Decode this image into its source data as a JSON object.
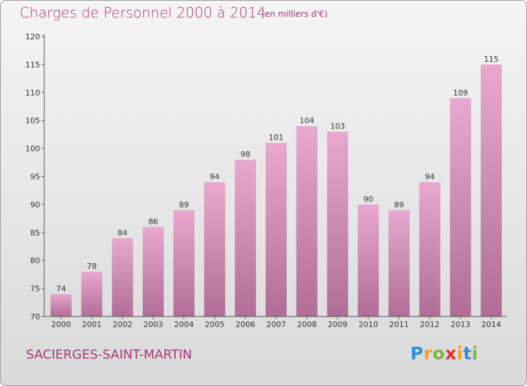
{
  "title": "Charges de Personnel 2000 à 2014",
  "subtitle": "(en milliers d'€)",
  "city": "SACIERGES-SAINT-MARTIN",
  "logo": {
    "text": "Proxiti",
    "letters": [
      {
        "ch": "P",
        "color": "#2e8fd6"
      },
      {
        "ch": "r",
        "color": "#f0a020"
      },
      {
        "ch": "o",
        "color": "#79b83a"
      },
      {
        "ch": "x",
        "color": "#e0302b"
      },
      {
        "ch": "i",
        "color": "#f0a020"
      },
      {
        "ch": "t",
        "color": "#2e8fd6"
      },
      {
        "ch": "i",
        "color": "#79b83a"
      }
    ]
  },
  "colors": {
    "bar_top": "#e8a8cf",
    "bar_bottom": "#b06e96",
    "accent": "#a63872"
  },
  "chart_data": {
    "type": "bar",
    "title": "Charges de Personnel 2000 à 2014",
    "categories": [
      "2000",
      "2001",
      "2002",
      "2003",
      "2004",
      "2005",
      "2006",
      "2007",
      "2008",
      "2009",
      "2010",
      "2011",
      "2012",
      "2013",
      "2014"
    ],
    "values": [
      74,
      78,
      84,
      86,
      89,
      94,
      98,
      101,
      104,
      103,
      90,
      89,
      94,
      109,
      115
    ],
    "ylim": [
      70,
      120
    ],
    "yticks": [
      70,
      75,
      80,
      85,
      90,
      95,
      100,
      105,
      110,
      115,
      120
    ],
    "grid": false,
    "data_labels": true
  }
}
